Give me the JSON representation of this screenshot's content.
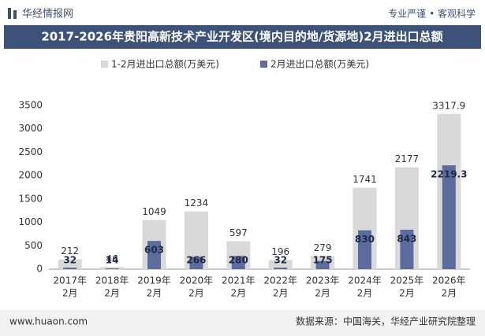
{
  "header": {
    "logo": "华经情报网",
    "slogan": "专业严谨 • 客观科学"
  },
  "footer": {
    "website": "www.huaon.com",
    "source": "数据来源：中国海关，华经产业研究院整理"
  },
  "chart_data": {
    "type": "bar",
    "title": "2017-2026年贵阳高新技术产业开发区(境内目的地/货源地)2月进出口总额",
    "categories": [
      [
        "2017年",
        "2月"
      ],
      [
        "2018年",
        "2月"
      ],
      [
        "2019年",
        "2月"
      ],
      [
        "2020年",
        "2月"
      ],
      [
        "2021年",
        "2月"
      ],
      [
        "2022年",
        "2月"
      ],
      [
        "2023年",
        "2月"
      ],
      [
        "2024年",
        "2月"
      ],
      [
        "2025年",
        "2月"
      ],
      [
        "2026年",
        "2月"
      ]
    ],
    "series": [
      {
        "name": "1-2月进出口总额(万美元)",
        "color": "#d9d9d9",
        "values": [
          212,
          46,
          1049,
          1234,
          597,
          196,
          279,
          1741,
          2177,
          3317.9
        ]
      },
      {
        "name": "2月进出口总额(万美元)",
        "color": "#5b6d9e",
        "values": [
          32,
          14,
          603,
          266,
          280,
          32,
          175,
          830,
          843,
          2219.3
        ]
      }
    ],
    "ylim": [
      0,
      3500
    ],
    "yticks": [
      0,
      500,
      1000,
      1500,
      2000,
      2500,
      3000,
      3500
    ],
    "grid": false
  }
}
